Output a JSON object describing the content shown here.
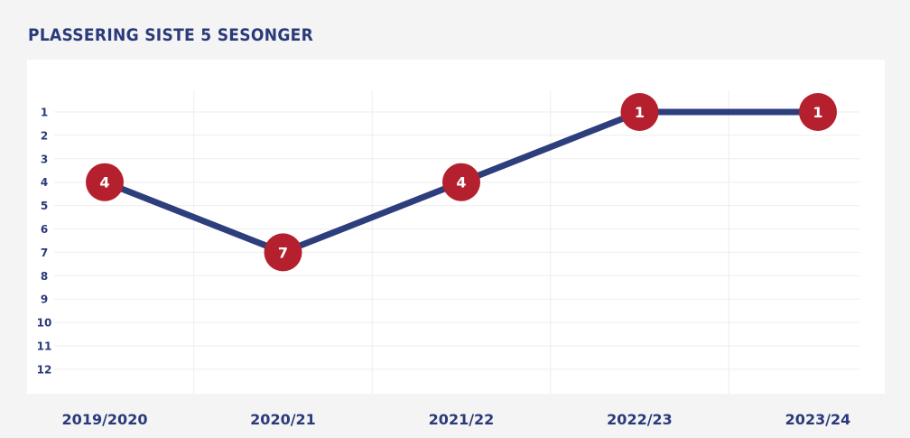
{
  "title": "PLASSERING SISTE 5 SESONGER",
  "chart_data": {
    "type": "line",
    "title": "PLASSERING SISTE 5 SESONGER",
    "categories": [
      "2019/2020",
      "2020/21",
      "2021/22",
      "2022/23",
      "2023/24"
    ],
    "values": [
      4,
      7,
      4,
      1,
      1
    ],
    "data_labels": [
      "4",
      "7",
      "4",
      "1",
      "1"
    ],
    "y_ticks": [
      "1",
      "2",
      "3",
      "4",
      "5",
      "6",
      "7",
      "8",
      "9",
      "10",
      "11",
      "12"
    ],
    "ylim": [
      1,
      12
    ],
    "y_inverted": true,
    "xlabel": "",
    "ylabel": "",
    "grid": true,
    "colors": {
      "line": "#2d3e7c",
      "marker": "#b5202e",
      "marker_text": "#ffffff",
      "axis_text": "#2a3a7a",
      "grid": "#eeeeee",
      "panel": "#ffffff",
      "background": "#f4f4f5"
    }
  }
}
